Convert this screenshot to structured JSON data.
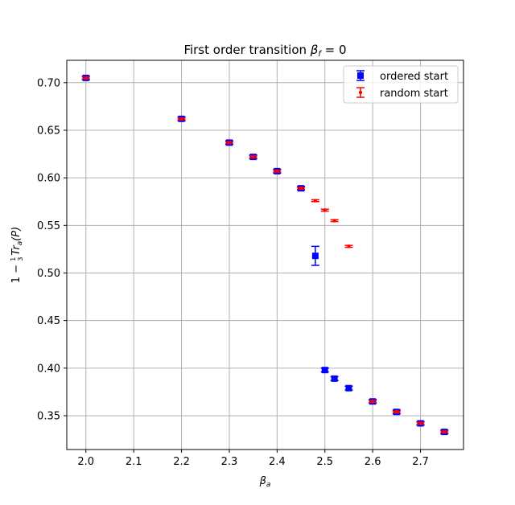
{
  "chart_data": {
    "type": "scatter",
    "title": "First order transition β_f = 0",
    "title_main": "First order transition ",
    "title_beta": "β",
    "title_sub": "f",
    "title_tail": " = 0",
    "xlabel": "β",
    "xlabel_sub": "a",
    "ylabel_prefix": "1 − ",
    "ylabel_num": "1",
    "ylabel_den": "3",
    "ylabel_tr": "Tr",
    "ylabel_tr_sub": "a",
    "ylabel_arg": "(P)",
    "xlim": [
      1.96,
      2.79
    ],
    "ylim": [
      0.3145,
      0.7235
    ],
    "xticks": [
      2.0,
      2.1,
      2.2,
      2.3,
      2.4,
      2.5,
      2.6,
      2.7
    ],
    "xtick_labels": [
      "2.0",
      "2.1",
      "2.2",
      "2.3",
      "2.4",
      "2.5",
      "2.6",
      "2.7"
    ],
    "yticks": [
      0.35,
      0.4,
      0.45,
      0.5,
      0.55,
      0.6,
      0.65,
      0.7
    ],
    "ytick_labels": [
      "0.35",
      "0.40",
      "0.45",
      "0.50",
      "0.55",
      "0.60",
      "0.65",
      "0.70"
    ],
    "grid": true,
    "legend_position": "top-right",
    "series": [
      {
        "name": "ordered start",
        "color": "#0000ff",
        "marker": "square",
        "points": [
          {
            "x": 2.0,
            "y": 0.705,
            "err": 0.002
          },
          {
            "x": 2.2,
            "y": 0.662,
            "err": 0.002
          },
          {
            "x": 2.3,
            "y": 0.637,
            "err": 0.002
          },
          {
            "x": 2.35,
            "y": 0.622,
            "err": 0.002
          },
          {
            "x": 2.4,
            "y": 0.607,
            "err": 0.002
          },
          {
            "x": 2.45,
            "y": 0.589,
            "err": 0.002
          },
          {
            "x": 2.48,
            "y": 0.518,
            "err": 0.01
          },
          {
            "x": 2.5,
            "y": 0.398,
            "err": 0.002
          },
          {
            "x": 2.52,
            "y": 0.389,
            "err": 0.002
          },
          {
            "x": 2.55,
            "y": 0.379,
            "err": 0.002
          },
          {
            "x": 2.6,
            "y": 0.365,
            "err": 0.002
          },
          {
            "x": 2.65,
            "y": 0.354,
            "err": 0.002
          },
          {
            "x": 2.7,
            "y": 0.342,
            "err": 0.002
          },
          {
            "x": 2.75,
            "y": 0.333,
            "err": 0.002
          }
        ]
      },
      {
        "name": "random start",
        "color": "#ff0000",
        "marker": "dot",
        "points": [
          {
            "x": 2.0,
            "y": 0.705,
            "err": 0.001
          },
          {
            "x": 2.2,
            "y": 0.662,
            "err": 0.001
          },
          {
            "x": 2.3,
            "y": 0.637,
            "err": 0.001
          },
          {
            "x": 2.35,
            "y": 0.622,
            "err": 0.001
          },
          {
            "x": 2.4,
            "y": 0.607,
            "err": 0.001
          },
          {
            "x": 2.45,
            "y": 0.589,
            "err": 0.001
          },
          {
            "x": 2.48,
            "y": 0.576,
            "err": 0.001
          },
          {
            "x": 2.5,
            "y": 0.566,
            "err": 0.001
          },
          {
            "x": 2.52,
            "y": 0.555,
            "err": 0.001
          },
          {
            "x": 2.55,
            "y": 0.528,
            "err": 0.001
          },
          {
            "x": 2.6,
            "y": 0.365,
            "err": 0.001
          },
          {
            "x": 2.65,
            "y": 0.354,
            "err": 0.001
          },
          {
            "x": 2.7,
            "y": 0.342,
            "err": 0.001
          },
          {
            "x": 2.75,
            "y": 0.333,
            "err": 0.001
          }
        ]
      }
    ]
  }
}
